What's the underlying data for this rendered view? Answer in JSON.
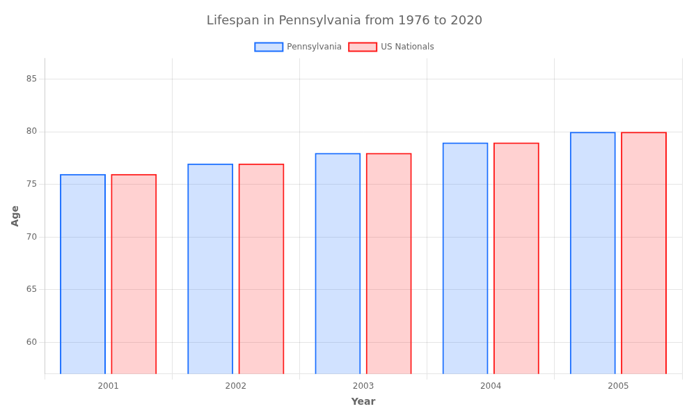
{
  "chart_data": {
    "type": "bar",
    "title": "Lifespan in Pennsylvania from 1976 to 2020",
    "xlabel": "Year",
    "ylabel": "Age",
    "categories": [
      "2001",
      "2002",
      "2003",
      "2004",
      "2005"
    ],
    "series": [
      {
        "name": "Pennsylvania",
        "color": "#1a6eff",
        "values": [
          76,
          77,
          78,
          79,
          80
        ]
      },
      {
        "name": "US Nationals",
        "color": "#ff1a1a",
        "values": [
          76,
          77,
          78,
          79,
          80
        ]
      }
    ],
    "ylim": [
      57,
      87
    ],
    "yticks": [
      60,
      65,
      70,
      75,
      80,
      85
    ],
    "grid": true,
    "legend": "top"
  }
}
